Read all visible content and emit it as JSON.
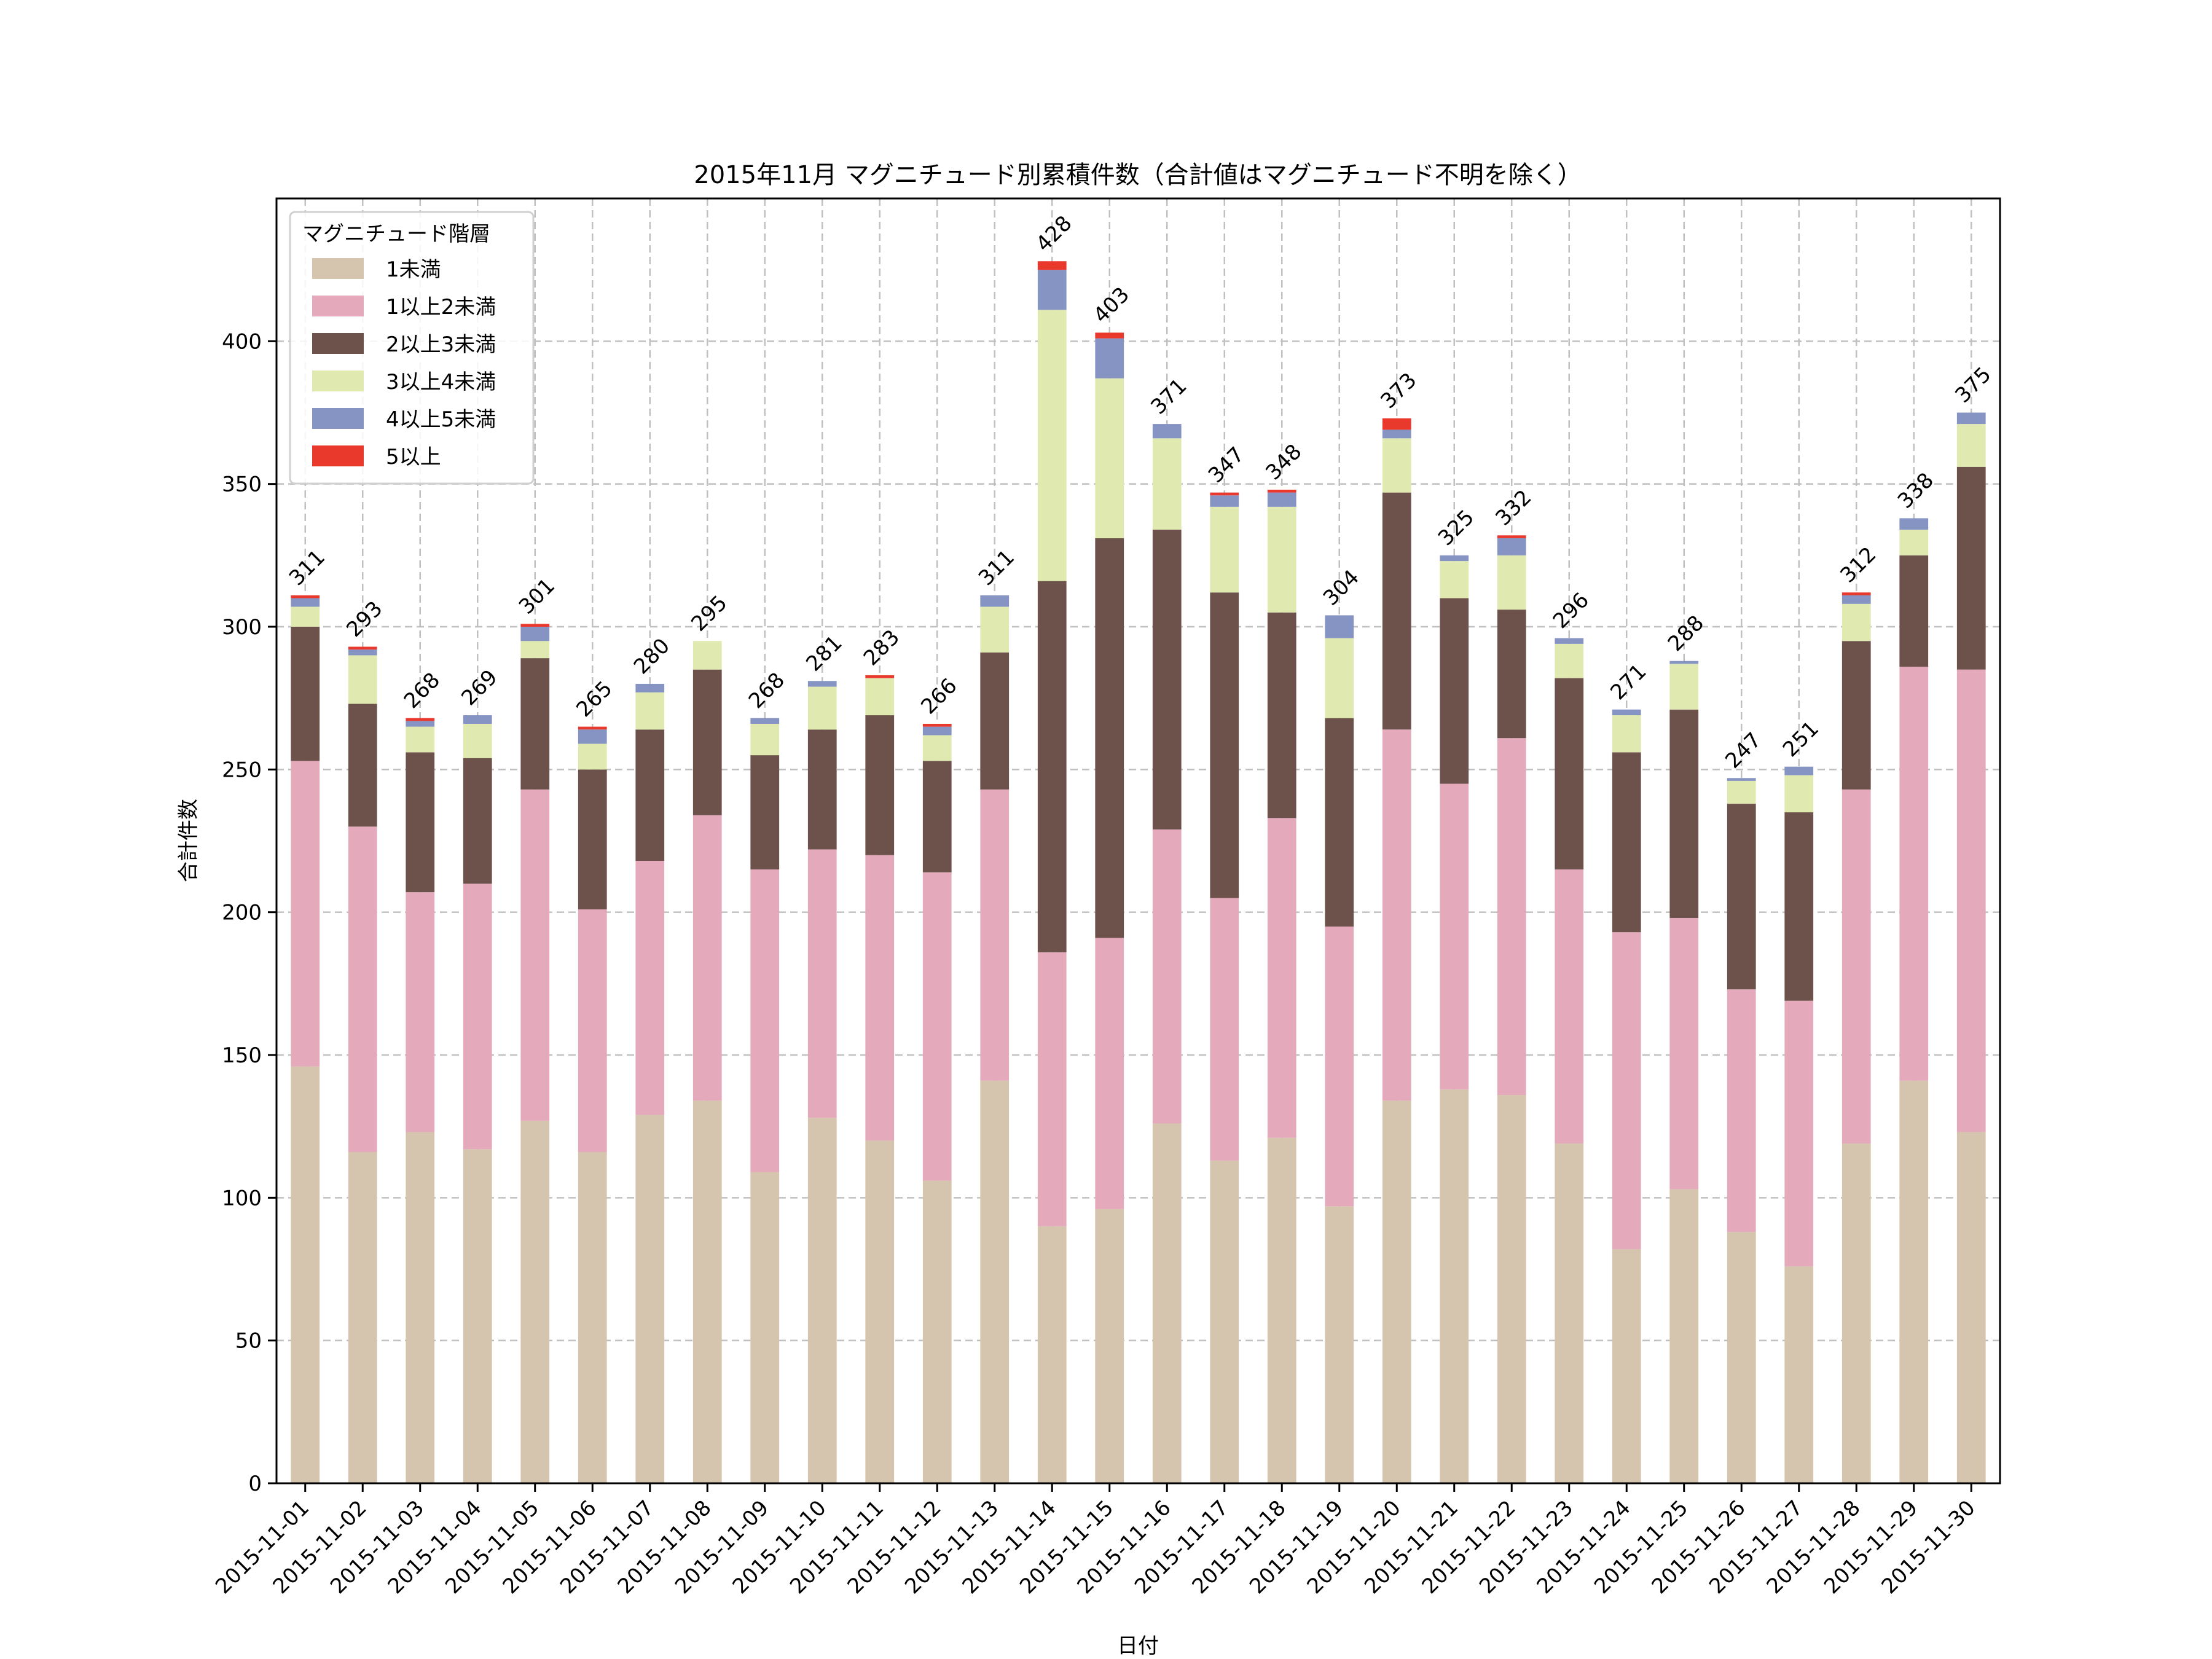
{
  "chart_data": {
    "type": "bar",
    "stacked": true,
    "title": "2015年11月 マグニチュード別累積件数（合計値はマグニチュード不明を除く）",
    "xlabel": "日付",
    "ylabel": "合計件数",
    "ylim": [
      0,
      450
    ],
    "yticks": [
      0,
      50,
      100,
      150,
      200,
      250,
      300,
      350,
      400
    ],
    "grid": true,
    "legend": {
      "title": "マグニチュード階層",
      "position": "top-left"
    },
    "categories": [
      "2015-11-01",
      "2015-11-02",
      "2015-11-03",
      "2015-11-04",
      "2015-11-05",
      "2015-11-06",
      "2015-11-07",
      "2015-11-08",
      "2015-11-09",
      "2015-11-10",
      "2015-11-11",
      "2015-11-12",
      "2015-11-13",
      "2015-11-14",
      "2015-11-15",
      "2015-11-16",
      "2015-11-17",
      "2015-11-18",
      "2015-11-19",
      "2015-11-20",
      "2015-11-21",
      "2015-11-22",
      "2015-11-23",
      "2015-11-24",
      "2015-11-25",
      "2015-11-26",
      "2015-11-27",
      "2015-11-28",
      "2015-11-29",
      "2015-11-30"
    ],
    "series": [
      {
        "name": "1未満",
        "color": "#d5c4ae",
        "values": [
          146,
          116,
          123,
          117,
          127,
          116,
          129,
          134,
          109,
          128,
          120,
          106,
          141,
          90,
          96,
          126,
          113,
          121,
          97,
          134,
          138,
          136,
          119,
          82,
          103,
          88,
          76,
          119,
          141,
          123
        ]
      },
      {
        "name": "1以上2未満",
        "color": "#e4aabb",
        "values": [
          107,
          114,
          84,
          93,
          116,
          85,
          89,
          100,
          106,
          94,
          100,
          108,
          102,
          96,
          95,
          103,
          92,
          112,
          98,
          130,
          107,
          125,
          96,
          111,
          95,
          85,
          93,
          124,
          145,
          162
        ]
      },
      {
        "name": "2以上3未満",
        "color": "#6d524c",
        "values": [
          47,
          43,
          49,
          44,
          46,
          49,
          46,
          51,
          40,
          42,
          49,
          39,
          48,
          130,
          140,
          105,
          107,
          72,
          73,
          83,
          65,
          45,
          67,
          63,
          73,
          65,
          66,
          52,
          39,
          71
        ]
      },
      {
        "name": "3以上4未満",
        "color": "#e0eab0",
        "values": [
          7,
          17,
          9,
          12,
          6,
          9,
          13,
          10,
          11,
          15,
          13,
          9,
          16,
          95,
          56,
          32,
          30,
          37,
          28,
          19,
          13,
          19,
          12,
          13,
          16,
          8,
          13,
          13,
          9,
          15
        ]
      },
      {
        "name": "4以上5未満",
        "color": "#8694c4",
        "values": [
          3,
          2,
          2,
          3,
          5,
          5,
          3,
          0,
          2,
          2,
          0,
          3,
          4,
          14,
          14,
          5,
          4,
          5,
          8,
          3,
          2,
          6,
          2,
          2,
          1,
          1,
          3,
          3,
          4,
          4
        ]
      },
      {
        "name": "5以上",
        "color": "#e8392c",
        "values": [
          1,
          1,
          1,
          0,
          1,
          1,
          0,
          0,
          0,
          0,
          1,
          1,
          0,
          3,
          2,
          0,
          1,
          1,
          0,
          4,
          0,
          1,
          0,
          0,
          0,
          0,
          0,
          1,
          0,
          0
        ]
      }
    ],
    "totals": [
      311,
      293,
      268,
      269,
      301,
      265,
      280,
      295,
      268,
      281,
      283,
      266,
      311,
      428,
      403,
      371,
      347,
      348,
      304,
      373,
      325,
      332,
      296,
      271,
      288,
      247,
      251,
      312,
      338,
      375
    ]
  }
}
